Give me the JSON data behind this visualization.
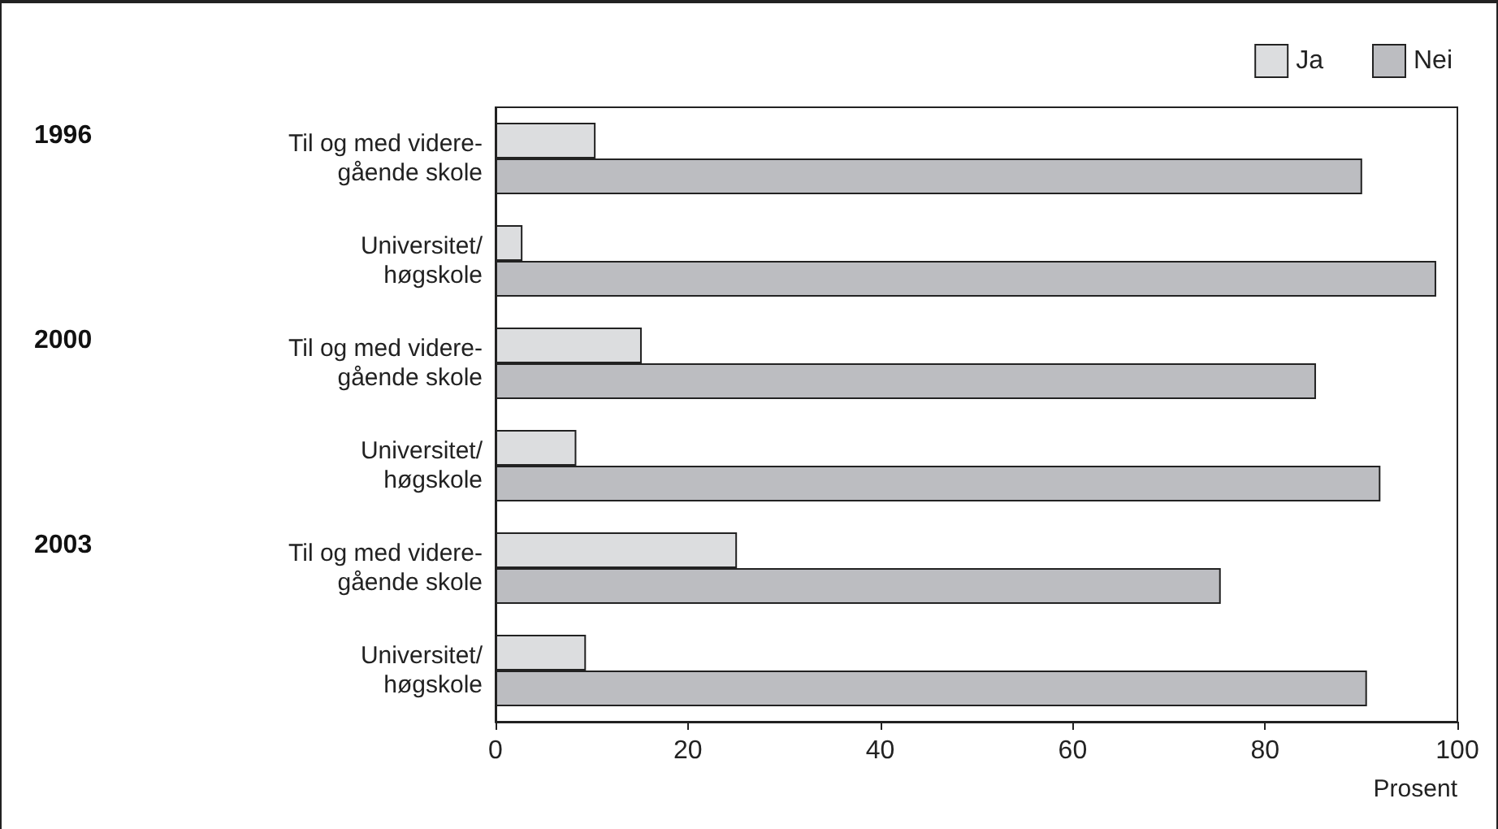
{
  "chart_data": {
    "type": "bar",
    "orientation": "horizontal",
    "xlabel": "Prosent",
    "categories": [
      "Til og med videre-\ngående skole",
      "Universitet/\nhøgskole",
      "Til og med videre-\ngående skole",
      "Universitet/\nhøgskole",
      "Til og med videre-\ngående skole",
      "Universitet/\nhøgskole"
    ],
    "series": [
      {
        "name": "Ja",
        "color": "#dcdddf",
        "values": [
          10.4,
          2.8,
          15.2,
          8.4,
          25.1,
          9.4
        ]
      },
      {
        "name": "Nei",
        "color": "#bcbdc1",
        "values": [
          90.1,
          97.8,
          85.3,
          92.0,
          75.4,
          90.6
        ]
      }
    ],
    "annotations": [
      "1996",
      "2000",
      "2003"
    ],
    "xlim": [
      0,
      100
    ],
    "xticks": [
      0,
      20,
      40,
      60,
      80,
      100
    ],
    "grid": false,
    "legend": "top right"
  }
}
